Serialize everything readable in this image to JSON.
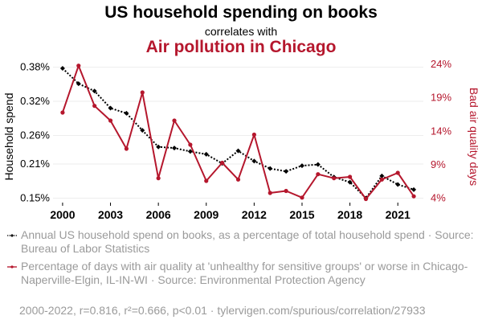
{
  "header": {
    "title": "US household spending on books",
    "subtitle": "correlates with",
    "title2": "Air pollution in Chicago"
  },
  "chart_data": {
    "type": "line",
    "x": [
      2000,
      2001,
      2002,
      2003,
      2004,
      2005,
      2006,
      2007,
      2008,
      2009,
      2010,
      2011,
      2012,
      2013,
      2014,
      2015,
      2016,
      2017,
      2018,
      2019,
      2020,
      2021,
      2022
    ],
    "xticks": [
      "2000",
      "2003",
      "2006",
      "2009",
      "2012",
      "2015",
      "2018",
      "2021"
    ],
    "xtick_values": [
      2000,
      2003,
      2006,
      2009,
      2012,
      2015,
      2018,
      2021
    ],
    "xlim": [
      1999.4,
      2022.6
    ],
    "left_axis": {
      "label": "Household spend",
      "ylim": [
        0.145,
        0.385
      ],
      "ticks": [
        "0.15%",
        "0.21%",
        "0.26%",
        "0.32%",
        "0.38%"
      ],
      "tick_values": [
        0.15,
        0.21,
        0.26,
        0.32,
        0.38
      ]
    },
    "right_axis": {
      "label": "Bad air quality days",
      "ylim": [
        3.6,
        24.0
      ],
      "ticks": [
        "4%",
        "9%",
        "14%",
        "19%",
        "24%"
      ],
      "tick_values": [
        4,
        9,
        14,
        19,
        24
      ]
    },
    "series": [
      {
        "name": "Annual US household spend on books, as a percentage of total household spend",
        "axis": "left",
        "color": "#000000",
        "style": "dotted",
        "marker": "diamond",
        "values": [
          0.378,
          0.351,
          0.338,
          0.308,
          0.299,
          0.269,
          0.24,
          0.238,
          0.232,
          0.227,
          0.211,
          0.233,
          0.215,
          0.202,
          0.197,
          0.207,
          0.209,
          0.187,
          0.178,
          0.15,
          0.189,
          0.174,
          0.165
        ]
      },
      {
        "name": "Percentage of days with air quality at 'unhealthy for sensitive groups' or worse in Chicago-Naperville-Elgin, IL-IN-WI",
        "axis": "right",
        "color": "#b5172d",
        "style": "solid",
        "marker": "circle",
        "values": [
          16.8,
          23.8,
          17.8,
          15.6,
          11.4,
          19.8,
          7.0,
          15.6,
          12.0,
          6.6,
          9.3,
          6.8,
          13.5,
          4.8,
          5.1,
          4.1,
          7.6,
          7.0,
          7.2,
          3.9,
          6.8,
          7.8,
          4.3
        ]
      }
    ]
  },
  "legend": {
    "series1_text": "Annual US household spend on books, as a percentage of total household spend · Source: Bureau of Labor Statistics",
    "series2_text": "Percentage of days with air quality at 'unhealthy for sensitive groups' or worse in Chicago-Naperville-Elgin, IL-IN-WI · Source: Environmental Protection Agency"
  },
  "footer": {
    "text": "2000-2022, r=0.816, r²=0.666, p<0.01 · tylervigen.com/spurious/correlation/27933"
  }
}
